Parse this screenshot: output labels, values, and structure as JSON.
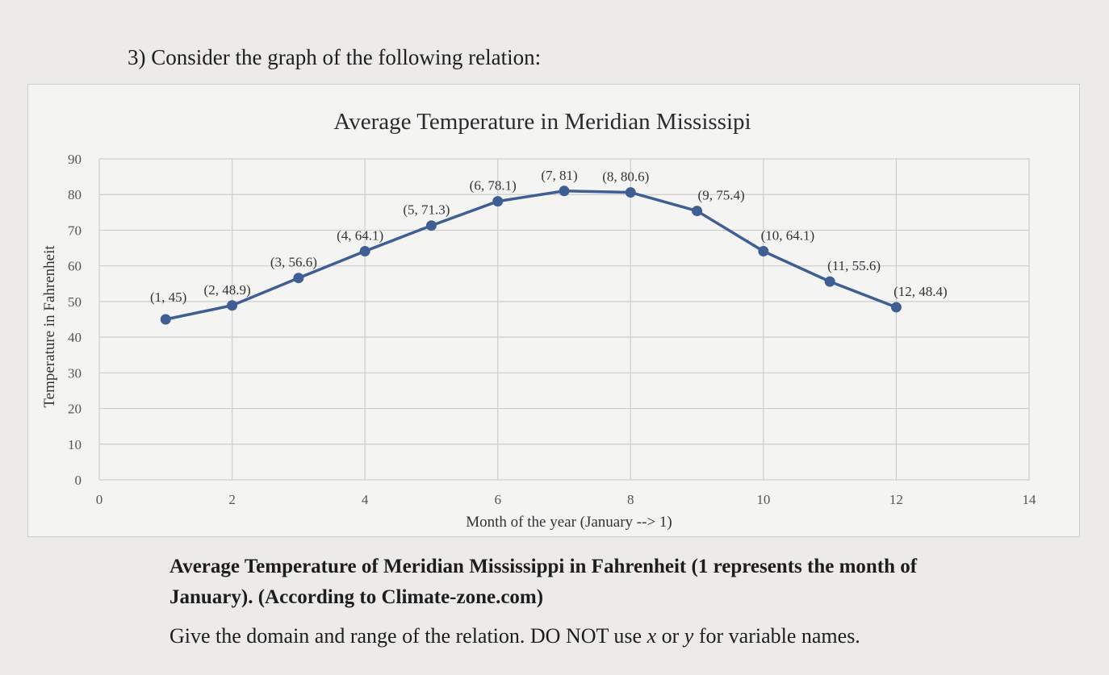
{
  "question": {
    "number": "3)",
    "text": "Consider the graph of the following relation:"
  },
  "caption": {
    "line1": "Average Temperature of Meridian Mississippi in Fahrenheit (1 represents the month of",
    "line2": "January). (According to Climate-zone.com)"
  },
  "instruction": {
    "part1": "Give the domain and range of the relation. DO NOT use ",
    "var1": "x",
    "part2": " or ",
    "var2": "y",
    "part3": " for variable names."
  },
  "chart_data": {
    "type": "line",
    "title": "Average Temperature in Meridian Mississipi",
    "xlabel": "Month of the year (January --> 1)",
    "ylabel": "Temperature in Fahrenheit",
    "xlim": [
      0,
      14
    ],
    "ylim": [
      0,
      90
    ],
    "xticks": [
      0,
      2,
      4,
      6,
      8,
      10,
      12,
      14
    ],
    "yticks": [
      0,
      10,
      20,
      30,
      40,
      50,
      60,
      70,
      80,
      90
    ],
    "grid": true,
    "legend": "none",
    "series_color": "#3e5e94",
    "points": [
      {
        "x": 1,
        "y": 45,
        "label": "(1, 45)"
      },
      {
        "x": 2,
        "y": 48.9,
        "label": "(2, 48.9)"
      },
      {
        "x": 3,
        "y": 56.6,
        "label": "(3, 56.6)"
      },
      {
        "x": 4,
        "y": 64.1,
        "label": "(4, 64.1)"
      },
      {
        "x": 5,
        "y": 71.3,
        "label": "(5, 71.3)"
      },
      {
        "x": 6,
        "y": 78.1,
        "label": "(6, 78.1)"
      },
      {
        "x": 7,
        "y": 81,
        "label": "(7, 81)"
      },
      {
        "x": 8,
        "y": 80.6,
        "label": "(8, 80.6)"
      },
      {
        "x": 9,
        "y": 75.4,
        "label": "(9, 75.4)"
      },
      {
        "x": 10,
        "y": 64.1,
        "label": "(10, 64.1)"
      },
      {
        "x": 11,
        "y": 55.6,
        "label": "(11, 55.6)"
      },
      {
        "x": 12,
        "y": 48.4,
        "label": "(12, 48.4)"
      }
    ]
  }
}
